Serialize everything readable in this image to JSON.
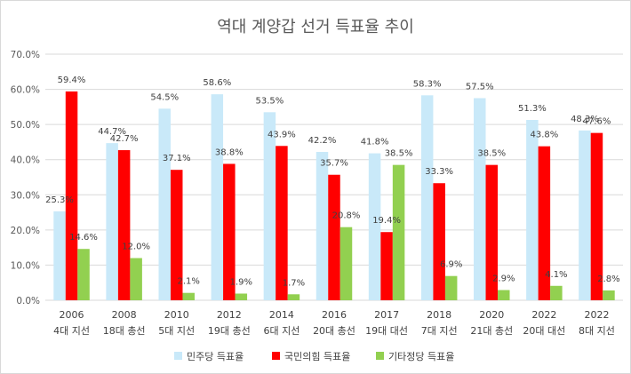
{
  "chart_data": {
    "type": "bar",
    "title": "역대 계양갑 선거 득표율 추이",
    "categories": [
      {
        "year": "2006",
        "election": "4대 지선"
      },
      {
        "year": "2008",
        "election": "18대 총선"
      },
      {
        "year": "2010",
        "election": "5대 지선"
      },
      {
        "year": "2012",
        "election": "19대 총선"
      },
      {
        "year": "2014",
        "election": "6대 지선"
      },
      {
        "year": "2016",
        "election": "20대 총선"
      },
      {
        "year": "2017",
        "election": "19대 대선"
      },
      {
        "year": "2018",
        "election": "7대 지선"
      },
      {
        "year": "2020",
        "election": "21대 총선"
      },
      {
        "year": "2022",
        "election": "20대 대선"
      },
      {
        "year": "2022",
        "election": "8대 지선"
      }
    ],
    "series": [
      {
        "name": "민주당 득표율",
        "color": "#c9e9f9",
        "values": [
          25.3,
          44.7,
          54.5,
          58.6,
          53.5,
          42.2,
          41.8,
          58.3,
          57.5,
          51.3,
          48.3
        ],
        "labels": [
          "25.3%",
          "44.7%",
          "54.5%",
          "58.6%",
          "53.5%",
          "42.2%",
          "41.8%",
          "58.3%",
          "57.5%",
          "51.3%",
          "48.3%"
        ]
      },
      {
        "name": "국민의힘 득표율",
        "color": "#ff0000",
        "values": [
          59.4,
          42.7,
          37.1,
          38.8,
          43.9,
          35.7,
          19.4,
          33.3,
          38.5,
          43.8,
          47.6
        ],
        "labels": [
          "59.4%",
          "42.7%",
          "37.1%",
          "38.8%",
          "43.9%",
          "35.7%",
          "19.4%",
          "33.3%",
          "38.5%",
          "43.8%",
          "47.6%"
        ]
      },
      {
        "name": "기타정당 득표율",
        "color": "#92d050",
        "values": [
          14.6,
          12.0,
          2.1,
          1.9,
          1.7,
          20.8,
          38.5,
          6.9,
          2.9,
          4.1,
          2.8
        ],
        "labels": [
          "14.6%",
          "12.0%",
          "2.1%",
          "1.9%",
          "1.7%",
          "20.8%",
          "38.5%",
          "6.9%",
          "2.9%",
          "4.1%",
          "2.8%"
        ]
      }
    ],
    "ylim": [
      0,
      70
    ],
    "yticks": [
      "0.0%",
      "10.0%",
      "20.0%",
      "30.0%",
      "40.0%",
      "50.0%",
      "60.0%",
      "70.0%"
    ],
    "grid": true,
    "gridColor": "#d9d9d9",
    "legend_position": "bottom"
  }
}
